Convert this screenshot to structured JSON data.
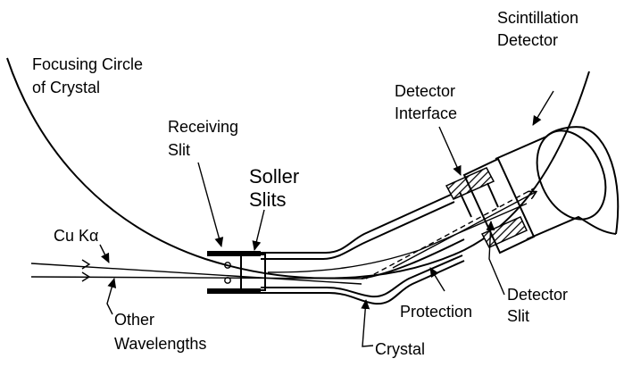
{
  "labels": {
    "focusing_circle_line1": "Focusing Circle",
    "focusing_circle_line2": "of Crystal",
    "receiving_slit_line1": "Receiving",
    "receiving_slit_line2": "Slit",
    "soller_slits_line1": "Soller",
    "soller_slits_line2": "Slits",
    "cu_k_alpha": "Cu Kα",
    "other_wavelengths_line1": "Other",
    "other_wavelengths_line2": "Wavelengths",
    "protection": "Protection",
    "crystal": "Crystal",
    "detector_slit_line1": "Detector",
    "detector_slit_line2": "Slit",
    "detector_interface_line1": "Detector",
    "detector_interface_line2": "Interface",
    "scintillation_detector_line1": "Scintillation",
    "scintillation_detector_line2": "Detector"
  }
}
